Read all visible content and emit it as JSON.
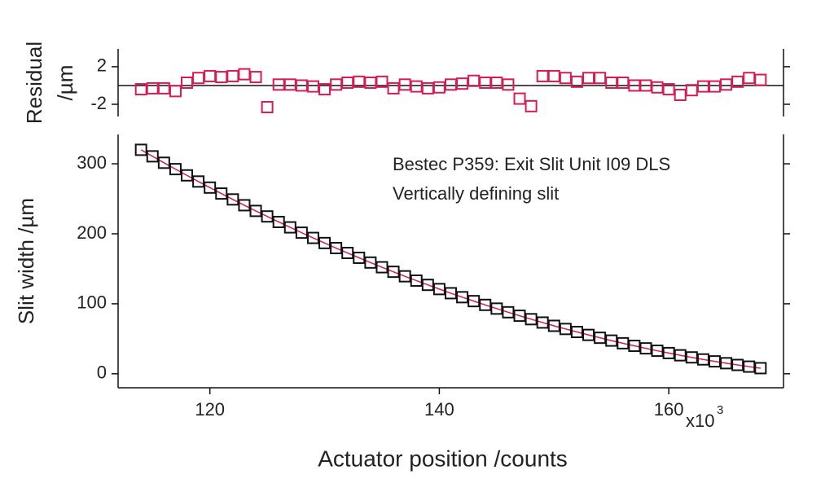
{
  "chart_data": [
    {
      "type": "scatter",
      "ylabel": [
        "Residual",
        "/µm"
      ],
      "x": [
        114,
        115,
        116,
        117,
        118,
        119,
        120,
        121,
        122,
        123,
        124,
        125,
        126,
        127,
        128,
        129,
        130,
        131,
        132,
        133,
        134,
        135,
        136,
        137,
        138,
        139,
        140,
        141,
        142,
        143,
        144,
        145,
        146,
        147,
        148,
        149,
        150,
        151,
        152,
        153,
        154,
        155,
        156,
        157,
        158,
        159,
        160,
        161,
        162,
        163,
        164,
        165,
        166,
        167,
        168
      ],
      "series": [
        {
          "color": "#d81b55",
          "values": [
            -0.4,
            -0.3,
            -0.3,
            -0.6,
            0.3,
            0.8,
            1.0,
            0.9,
            1.0,
            1.2,
            0.9,
            -2.3,
            0.1,
            0.1,
            0,
            -0.1,
            -0.4,
            0.1,
            0.3,
            0.4,
            0.3,
            0.4,
            -0.3,
            0.1,
            -0.1,
            -0.3,
            -0.2,
            0.1,
            0.2,
            0.5,
            0.3,
            0.3,
            0.1,
            -1.4,
            -2.2,
            1.0,
            1.0,
            0.8,
            0.4,
            0.8,
            0.8,
            0.3,
            0.3,
            0,
            0,
            -0.2,
            -0.4,
            -1.0,
            -0.5,
            -0.1,
            -0.1,
            0.1,
            0.4,
            0.8,
            0.6
          ]
        }
      ],
      "reference_line": 0,
      "xlim": [
        112,
        170
      ],
      "ylim": [
        -3.3,
        3.9
      ],
      "yticks": [
        -2,
        2
      ]
    },
    {
      "type": "scatter",
      "ylabel": "Slit width /µm",
      "xlabel": "Actuator position /counts",
      "annotations": [
        "Bestec P359: Exit Slit Unit I09 DLS",
        "Vertically defining slit"
      ],
      "x_scale_label": "x10",
      "x_scale_exponent": "3",
      "x": [
        114,
        115,
        116,
        117,
        118,
        119,
        120,
        121,
        122,
        123,
        124,
        125,
        126,
        127,
        128,
        129,
        130,
        131,
        132,
        133,
        134,
        135,
        136,
        137,
        138,
        139,
        140,
        141,
        142,
        143,
        144,
        145,
        146,
        147,
        148,
        149,
        150,
        151,
        152,
        153,
        154,
        155,
        156,
        157,
        158,
        159,
        160,
        161,
        162,
        163,
        164,
        165,
        166,
        167,
        168
      ],
      "series": [
        {
          "color": "#111111",
          "fit_color": "#d81b55",
          "values": [
            320,
            310.7,
            301.5,
            292.4,
            283.5,
            274.7,
            266.0,
            257.5,
            249.1,
            240.8,
            232.7,
            224.8,
            216.9,
            209.2,
            201.6,
            194.1,
            186.8,
            179.6,
            172.6,
            165.7,
            158.9,
            152.2,
            145.7,
            139.3,
            133.1,
            127.0,
            121.0,
            115.1,
            109.4,
            103.8,
            98.4,
            93.1,
            87.9,
            82.9,
            78.0,
            73.2,
            68.5,
            64.0,
            59.7,
            55.5,
            51.4,
            47.4,
            43.6,
            39.9,
            36.3,
            32.9,
            29.6,
            26.4,
            23.4,
            20.5,
            17.7,
            15.1,
            12.6,
            10.2,
            8.0
          ]
        }
      ],
      "xlim": [
        112,
        170
      ],
      "ylim": [
        -20,
        342
      ],
      "xticks": [
        120,
        140,
        160
      ],
      "yticks": [
        0,
        100,
        200,
        300
      ]
    }
  ]
}
